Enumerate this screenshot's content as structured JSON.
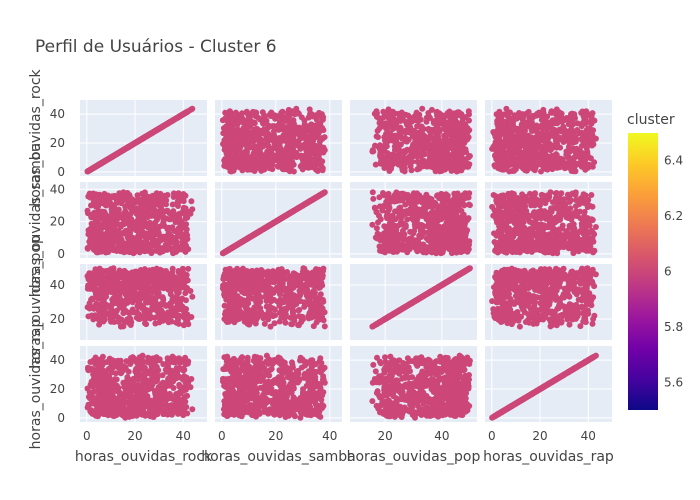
{
  "chart_data": {
    "type": "scatter_matrix",
    "title": "Perfil de Usuários - Cluster 6",
    "dimensions": [
      "horas_ouvidas_rock",
      "horas_ouvidas_samba",
      "horas_ouvidas_pop",
      "horas_ouvidas_rap"
    ],
    "ranges": {
      "horas_ouvidas_rock": [
        0,
        47
      ],
      "horas_ouvidas_samba": [
        0,
        42
      ],
      "horas_ouvidas_pop": [
        10,
        50
      ],
      "horas_ouvidas_rap": [
        0,
        47
      ]
    },
    "ticks": {
      "horas_ouvidas_rock": [
        0,
        20,
        40
      ],
      "horas_ouvidas_samba": [
        0,
        20,
        40
      ],
      "horas_ouvidas_pop": [
        20,
        40
      ],
      "horas_ouvidas_rap": [
        0,
        20,
        40
      ]
    },
    "point_color": "#cc4778",
    "cluster_value": 6,
    "colorbar": {
      "title": "cluster",
      "min": 5.5,
      "max": 6.5,
      "ticks": [
        "5.6",
        "5.8",
        "6",
        "6.2",
        "6.4"
      ],
      "tick_values": [
        5.6,
        5.8,
        6.0,
        6.2,
        6.4
      ],
      "colorscale": [
        "#0d0887",
        "#46039f",
        "#7201a8",
        "#9c179e",
        "#bd3786",
        "#d8576b",
        "#ed7953",
        "#fb9f3a",
        "#fdca26",
        "#f0f921"
      ]
    },
    "grid": true,
    "background_color": "#e5ecf6",
    "legend": "none"
  }
}
